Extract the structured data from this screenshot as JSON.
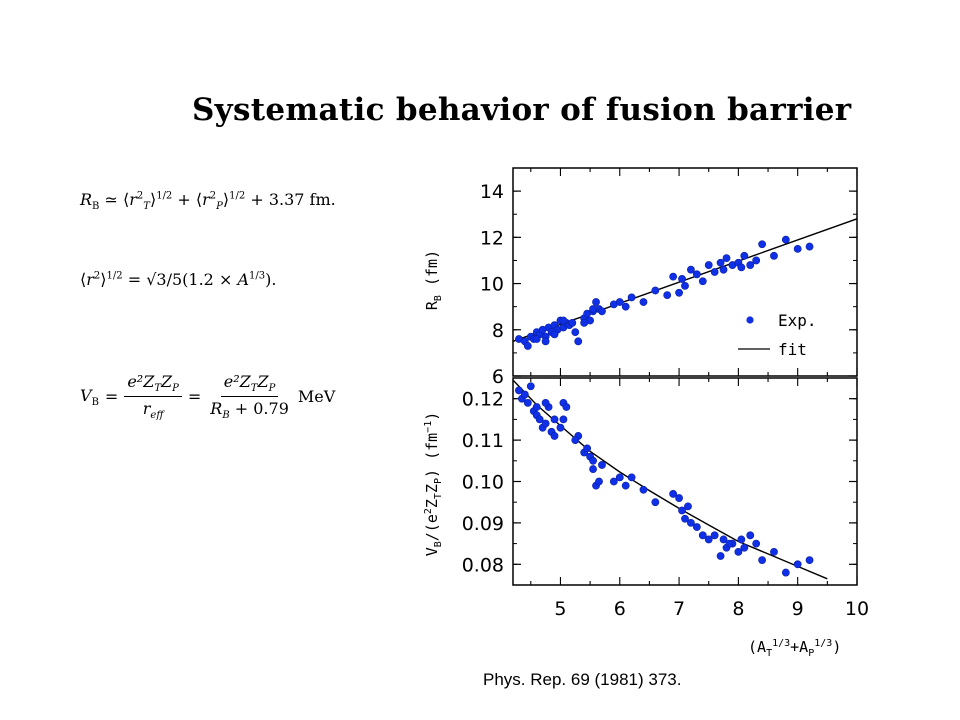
{
  "page": {
    "title": "Systematic behavior of fusion barrier",
    "citation": "Phys. Rep. 69 (1981) 373."
  },
  "equations": {
    "eq1": {
      "lhs": "R",
      "lhs_sub": "B",
      "rel": "≃",
      "rT": "r",
      "rT_sup": "2",
      "rT_sub": "T",
      "pow": "1/2",
      "plus": "+",
      "rP": "r",
      "rP_sup": "2",
      "rP_sub": "P",
      "const": "+ 3.37 fm."
    },
    "eq2": {
      "r": "r",
      "r_sup": "2",
      "pow": "1/2",
      "eq": "=",
      "sqrt": "√3/5",
      "paren": "(1.2 × ",
      "A": "A",
      "A_sup": "1/3",
      "close": ")."
    },
    "eq3": {
      "lhs": "V",
      "lhs_sub": "B",
      "eq": "=",
      "num1": "e²Z",
      "num1_sub_T": "T",
      "num1_Z": "Z",
      "num1_sub_P": "P",
      "den1": "r",
      "den1_sub": "eff",
      "eq2": "=",
      "num2": "e²Z",
      "num2_sub_T": "T",
      "num2_Z": "Z",
      "num2_sub_P": "P",
      "den2": "R",
      "den2_sub": "B",
      "den2_rest": " + 0.79",
      "unit": "MeV"
    }
  },
  "chart_data": [
    {
      "type": "scatter",
      "panel": "top",
      "ylabel_main": "R",
      "ylabel_sub": "B",
      "ylabel_unit": "(fm)",
      "xlim": [
        4.2,
        10
      ],
      "ylim": [
        6,
        15
      ],
      "y_ticks": [
        6,
        8,
        10,
        12,
        14
      ],
      "legend": {
        "exp": "Exp.",
        "fit": "fit"
      },
      "fit_line": {
        "x": [
          4.2,
          10
        ],
        "y": [
          7.5,
          12.8
        ]
      },
      "series": [
        {
          "name": "Exp.",
          "x": [
            4.3,
            4.4,
            4.5,
            4.55,
            4.6,
            4.65,
            4.7,
            4.75,
            4.8,
            4.85,
            4.9,
            4.95,
            5.0,
            5.05,
            5.1,
            5.15,
            5.2,
            5.3,
            5.4,
            5.45,
            5.5,
            5.55,
            5.6,
            5.65,
            5.7,
            5.9,
            6.0,
            6.1,
            6.2,
            6.4,
            6.6,
            6.8,
            6.9,
            7.0,
            7.05,
            7.1,
            7.2,
            7.3,
            7.4,
            7.5,
            7.6,
            7.7,
            7.75,
            7.8,
            7.9,
            8.0,
            8.05,
            8.1,
            8.2,
            8.3,
            8.4,
            8.6,
            8.8,
            9.0,
            9.2,
            4.45,
            4.6,
            4.75,
            4.9,
            5.05,
            5.25,
            5.4,
            5.55
          ],
          "y": [
            7.6,
            7.5,
            7.7,
            7.6,
            7.9,
            7.8,
            8.0,
            7.7,
            8.1,
            7.9,
            8.2,
            8.0,
            8.4,
            8.1,
            8.3,
            8.2,
            8.3,
            7.5,
            8.5,
            8.7,
            8.4,
            8.8,
            9.2,
            8.9,
            8.8,
            9.1,
            9.2,
            9.0,
            9.4,
            9.2,
            9.7,
            9.5,
            10.3,
            9.6,
            10.2,
            9.9,
            10.6,
            10.4,
            10.1,
            10.8,
            10.5,
            10.9,
            10.6,
            11.1,
            10.8,
            10.9,
            10.7,
            11.2,
            10.8,
            11.0,
            11.7,
            11.2,
            11.9,
            11.5,
            11.6,
            7.3,
            7.6,
            7.5,
            7.8,
            8.4,
            7.9,
            8.3,
            8.9
          ]
        }
      ]
    },
    {
      "type": "scatter",
      "panel": "bottom",
      "ylabel": "V_B/(e²Z_TZ_P) (fm⁻¹)",
      "ylabel_parts": {
        "a": "V",
        "a_sub": "B",
        "b": "/(e",
        "b_sup": "2",
        "c": "Z",
        "c_sub": "T",
        "d": "Z",
        "d_sub": "P",
        "e": ") (fm",
        "e_sup": "−1",
        "f": ")"
      },
      "xlabel_parts": {
        "a": "(A",
        "a_sub": "T",
        "a_sup": "1/3",
        "b": "+A",
        "b_sub": "P",
        "b_sup": "1/3",
        "c": ")"
      },
      "xlim": [
        4.2,
        10
      ],
      "ylim": [
        0.075,
        0.125
      ],
      "x_ticks": [
        5,
        6,
        7,
        8,
        9,
        10
      ],
      "y_ticks": [
        0.08,
        0.09,
        0.1,
        0.11,
        0.12
      ],
      "y_tick_labels": [
        "0.08",
        "0.09",
        "0.10",
        "0.11",
        "0.12"
      ],
      "fit_line": {
        "x": [
          4.2,
          4.6,
          5.0,
          5.5,
          6.0,
          6.5,
          7.0,
          7.5,
          8.0,
          8.5,
          9.0,
          9.5
        ],
        "y": [
          0.1245,
          0.1185,
          0.1135,
          0.1073,
          0.1023,
          0.0978,
          0.0935,
          0.0895,
          0.0855,
          0.0825,
          0.0795,
          0.0765
        ]
      },
      "series": [
        {
          "name": "Exp.",
          "x": [
            4.3,
            4.35,
            4.4,
            4.45,
            4.5,
            4.55,
            4.6,
            4.65,
            4.7,
            4.75,
            4.8,
            4.85,
            4.9,
            5.0,
            5.05,
            5.1,
            5.3,
            5.4,
            5.45,
            5.5,
            5.55,
            5.6,
            5.65,
            5.7,
            5.9,
            6.0,
            6.1,
            6.2,
            6.4,
            6.6,
            6.9,
            7.0,
            7.05,
            7.1,
            7.2,
            7.3,
            7.4,
            7.5,
            7.6,
            7.7,
            7.75,
            7.8,
            7.9,
            8.0,
            8.05,
            8.1,
            8.2,
            8.3,
            8.4,
            8.6,
            8.8,
            9.0,
            9.2,
            4.6,
            4.75,
            4.9,
            5.05,
            5.25,
            5.55,
            7.15,
            7.85
          ],
          "y": [
            0.122,
            0.12,
            0.121,
            0.119,
            0.123,
            0.117,
            0.116,
            0.115,
            0.113,
            0.114,
            0.118,
            0.112,
            0.115,
            0.113,
            0.119,
            0.118,
            0.111,
            0.107,
            0.108,
            0.106,
            0.105,
            0.099,
            0.1,
            0.104,
            0.1,
            0.101,
            0.099,
            0.101,
            0.098,
            0.095,
            0.097,
            0.096,
            0.093,
            0.091,
            0.09,
            0.089,
            0.087,
            0.086,
            0.087,
            0.082,
            0.086,
            0.084,
            0.085,
            0.083,
            0.086,
            0.084,
            0.087,
            0.085,
            0.081,
            0.083,
            0.078,
            0.08,
            0.081,
            0.118,
            0.119,
            0.111,
            0.115,
            0.11,
            0.103,
            0.094,
            0.085
          ]
        }
      ]
    }
  ]
}
